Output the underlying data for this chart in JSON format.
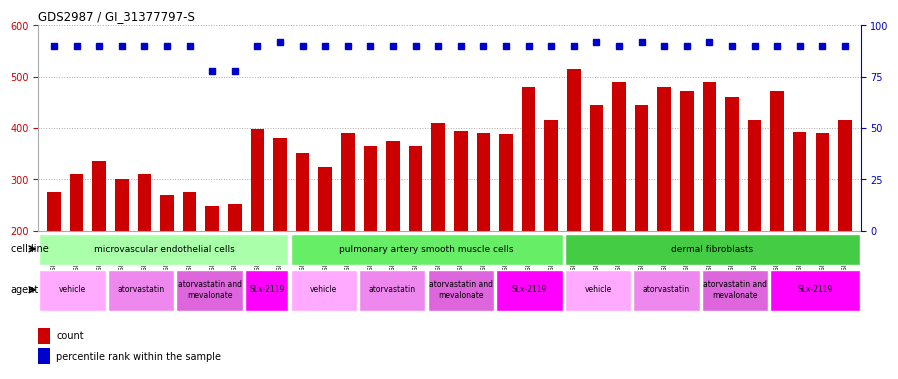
{
  "title": "GDS2987 / GI_31377797-S",
  "samples": [
    "GSM214810",
    "GSM215244",
    "GSM215253",
    "GSM215254",
    "GSM215282",
    "GSM215344",
    "GSM215283",
    "GSM215284",
    "GSM215293",
    "GSM215294",
    "GSM215295",
    "GSM215296",
    "GSM215297",
    "GSM215298",
    "GSM215310",
    "GSM215311",
    "GSM215312",
    "GSM215313",
    "GSM215324",
    "GSM215325",
    "GSM215326",
    "GSM215327",
    "GSM215328",
    "GSM215329",
    "GSM215330",
    "GSM215331",
    "GSM215332",
    "GSM215333",
    "GSM215334",
    "GSM215335",
    "GSM215336",
    "GSM215337",
    "GSM215338",
    "GSM215339",
    "GSM215340",
    "GSM215341"
  ],
  "counts": [
    275,
    310,
    335,
    300,
    310,
    270,
    275,
    248,
    252,
    398,
    380,
    352,
    325,
    390,
    365,
    375,
    365,
    410,
    395,
    390,
    388,
    480,
    415,
    515,
    445,
    490,
    445,
    480,
    472,
    490,
    460,
    415,
    472,
    393,
    390,
    415
  ],
  "percentile_ranks": [
    90,
    90,
    90,
    90,
    90,
    90,
    90,
    78,
    78,
    90,
    92,
    90,
    90,
    90,
    90,
    90,
    90,
    90,
    90,
    90,
    90,
    90,
    90,
    90,
    92,
    90,
    92,
    90,
    90,
    92,
    90,
    90,
    90,
    90,
    90,
    90
  ],
  "ylim_left": [
    200,
    600
  ],
  "ylim_right": [
    0,
    100
  ],
  "yticks_left": [
    200,
    300,
    400,
    500,
    600
  ],
  "yticks_right": [
    0,
    25,
    50,
    75,
    100
  ],
  "bar_color": "#cc0000",
  "dot_color": "#0000cc",
  "left_label_color": "#cc0000",
  "right_label_color": "#0000cc",
  "grid_color": "#aaaaaa",
  "cell_line_groups": [
    {
      "label": "microvascular endothelial cells",
      "start": 0,
      "end": 11,
      "color": "#aaffaa"
    },
    {
      "label": "pulmonary artery smooth muscle cells",
      "start": 11,
      "end": 23,
      "color": "#66ee66"
    },
    {
      "label": "dermal fibroblasts",
      "start": 23,
      "end": 36,
      "color": "#44cc44"
    }
  ],
  "agent_groups": [
    {
      "label": "vehicle",
      "start": 0,
      "end": 3
    },
    {
      "label": "atorvastatin",
      "start": 3,
      "end": 6
    },
    {
      "label": "atorvastatin and\nmevalonate",
      "start": 6,
      "end": 9
    },
    {
      "label": "SLx-2119",
      "start": 9,
      "end": 11
    },
    {
      "label": "vehicle",
      "start": 11,
      "end": 14
    },
    {
      "label": "atorvastatin",
      "start": 14,
      "end": 17
    },
    {
      "label": "atorvastatin and\nmevalonate",
      "start": 17,
      "end": 20
    },
    {
      "label": "SLx-2119",
      "start": 20,
      "end": 23
    },
    {
      "label": "vehicle",
      "start": 23,
      "end": 26
    },
    {
      "label": "atorvastatin",
      "start": 26,
      "end": 29
    },
    {
      "label": "atorvastatin and\nmevalonate",
      "start": 29,
      "end": 32
    },
    {
      "label": "SLx-2119",
      "start": 32,
      "end": 36
    }
  ],
  "agent_colors": [
    "#ffaaff",
    "#ee88ee",
    "#dd66dd",
    "#ff00ff"
  ]
}
